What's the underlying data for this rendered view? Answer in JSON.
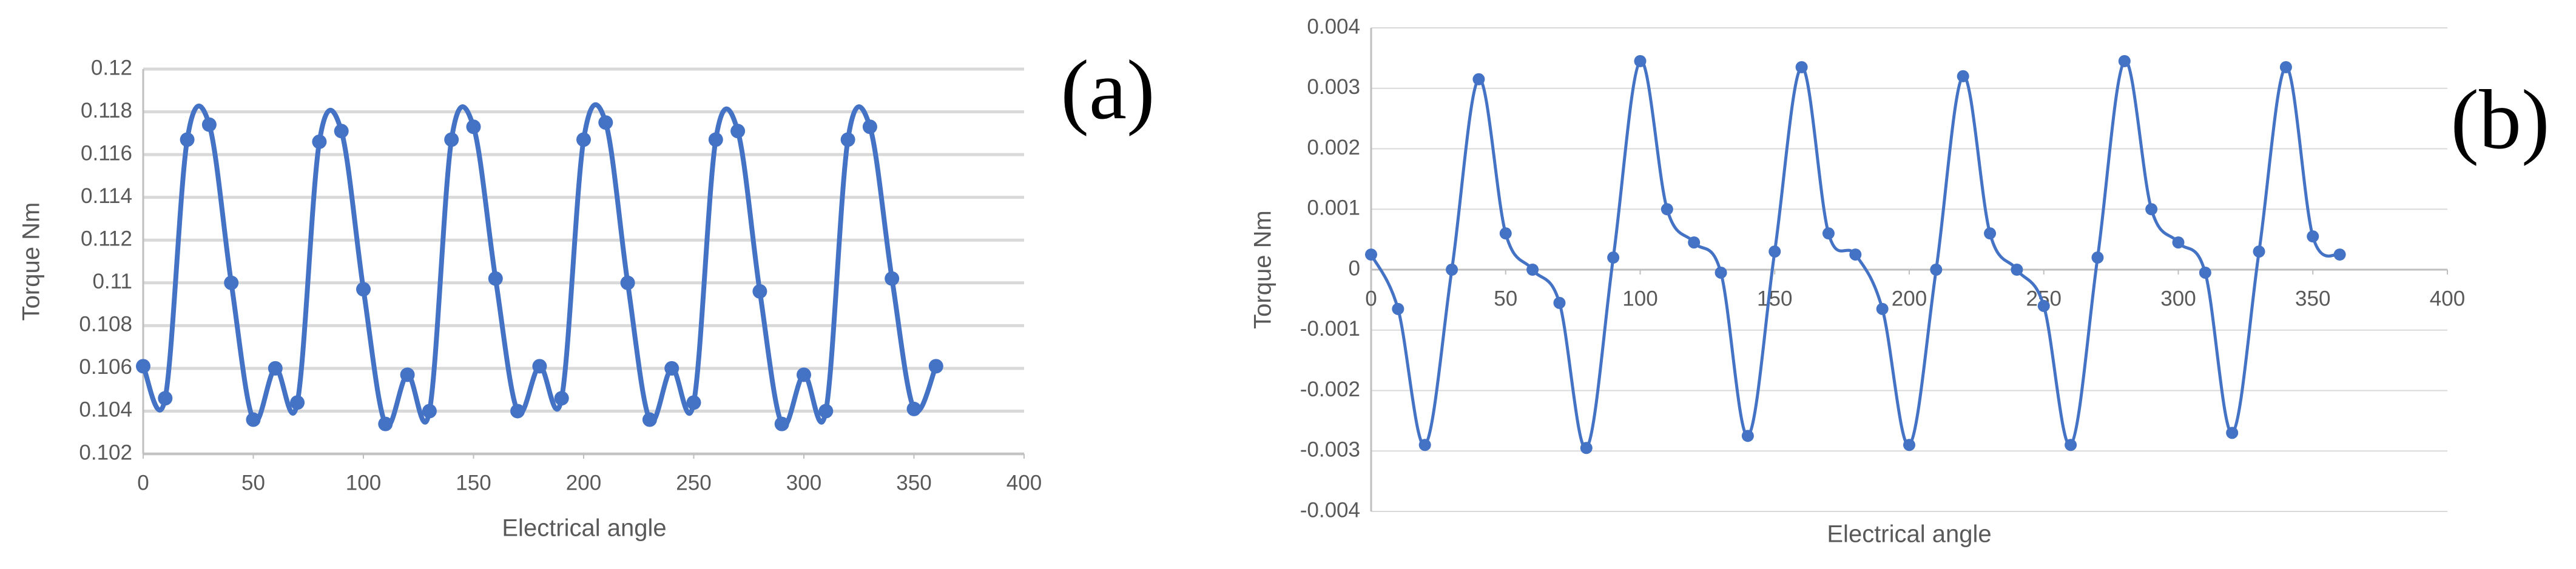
{
  "chart_data": [
    {
      "type": "line",
      "label": "(a)",
      "x_label": "Electrical angle",
      "y_label": "Torque Nm",
      "x": [
        0,
        10,
        20,
        30,
        40,
        50,
        60,
        70,
        80,
        90,
        100,
        110,
        120,
        130,
        140,
        150,
        160,
        170,
        180,
        190,
        200,
        210,
        220,
        230,
        240,
        250,
        260,
        270,
        280,
        290,
        300,
        310,
        320,
        330,
        340,
        350,
        360
      ],
      "series": [
        {
          "color": "#4472c4",
          "values": [
            0.1061,
            0.1046,
            0.1167,
            0.1174,
            0.11,
            0.1036,
            0.106,
            0.1044,
            0.1166,
            0.1171,
            0.1097,
            0.1034,
            0.1057,
            0.104,
            0.1167,
            0.1173,
            0.1102,
            0.104,
            0.1061,
            0.1046,
            0.1167,
            0.1175,
            0.11,
            0.1036,
            0.106,
            0.1044,
            0.1167,
            0.1171,
            0.1096,
            0.1034,
            0.1057,
            0.104,
            0.1167,
            0.1173,
            0.1102,
            0.1041,
            0.1061
          ]
        }
      ],
      "xlim": [
        0,
        400
      ],
      "xticks": [
        0,
        50,
        100,
        150,
        200,
        250,
        300,
        350,
        400
      ],
      "ylim": [
        0.102,
        0.12
      ],
      "yticks": [
        0.102,
        0.104,
        0.106,
        0.108,
        0.11,
        0.112,
        0.114,
        0.116,
        0.118,
        0.12
      ],
      "grid": true,
      "smooth": true
    },
    {
      "type": "line",
      "label": "(b)",
      "x_label": "Electrical angle",
      "y_label": "Torque  Nm",
      "x": [
        0,
        10,
        20,
        30,
        40,
        50,
        60,
        70,
        80,
        90,
        100,
        110,
        120,
        130,
        140,
        150,
        160,
        170,
        180,
        190,
        200,
        210,
        220,
        230,
        240,
        250,
        260,
        270,
        280,
        290,
        300,
        310,
        320,
        330,
        340,
        350,
        360
      ],
      "series": [
        {
          "color": "#4472c4",
          "values": [
            0.00025,
            -0.00065,
            -0.0029,
            0,
            0.00315,
            0.0006,
            0,
            -0.00055,
            -0.00295,
            0.0002,
            0.00345,
            0.001,
            0.00045,
            -5e-05,
            -0.00275,
            0.0003,
            0.00335,
            0.0006,
            0.00025,
            -0.00065,
            -0.0029,
            0,
            0.0032,
            0.0006,
            0,
            -0.0006,
            -0.0029,
            0.0002,
            0.00345,
            0.001,
            0.00045,
            -5e-05,
            -0.0027,
            0.0003,
            0.00335,
            0.00055,
            0.00025
          ]
        }
      ],
      "xlim": [
        0,
        400
      ],
      "xticks": [
        0,
        50,
        100,
        150,
        200,
        250,
        300,
        350,
        400
      ],
      "ylim": [
        -0.004,
        0.004
      ],
      "yticks": [
        -0.004,
        -0.003,
        -0.002,
        -0.001,
        0,
        0.001,
        0.002,
        0.003,
        0.004
      ],
      "grid": true,
      "smooth": true
    }
  ]
}
